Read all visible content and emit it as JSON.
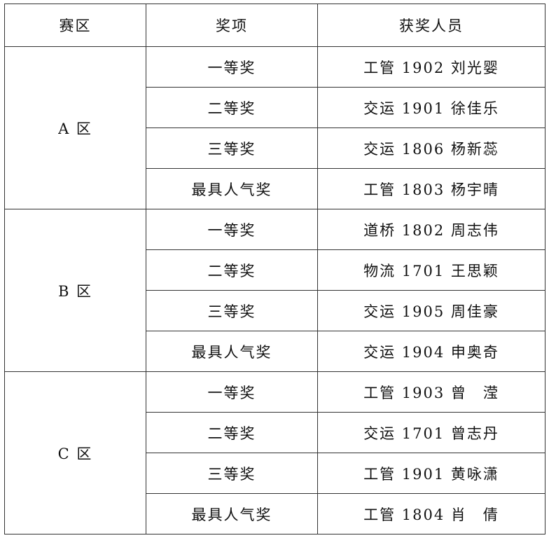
{
  "headers": [
    "赛区",
    "奖项",
    "获奖人员"
  ],
  "groups": [
    {
      "region": "A 区",
      "rows": [
        {
          "award": "一等奖",
          "winner": "工管 1902 刘光婴"
        },
        {
          "award": "二等奖",
          "winner": "交运 1901 徐佳乐"
        },
        {
          "award": "三等奖",
          "winner": "交运 1806 杨新蕊"
        },
        {
          "award": "最具人气奖",
          "winner": "工管 1803 杨宇晴"
        }
      ]
    },
    {
      "region": "B 区",
      "rows": [
        {
          "award": "一等奖",
          "winner": "道桥 1802 周志伟"
        },
        {
          "award": "二等奖",
          "winner": "物流 1701 王思颖"
        },
        {
          "award": "三等奖",
          "winner": "交运 1905 周佳豪"
        },
        {
          "award": "最具人气奖",
          "winner": "交运 1904 申奥奇"
        }
      ]
    },
    {
      "region": "C 区",
      "rows": [
        {
          "award": "一等奖",
          "winner": "工管 1903 曾　滢"
        },
        {
          "award": "二等奖",
          "winner": "交运 1701 曾志丹"
        },
        {
          "award": "三等奖",
          "winner": "工管 1901 黄咏潇"
        },
        {
          "award": "最具人气奖",
          "winner": "工管 1804 肖　倩"
        }
      ]
    }
  ]
}
